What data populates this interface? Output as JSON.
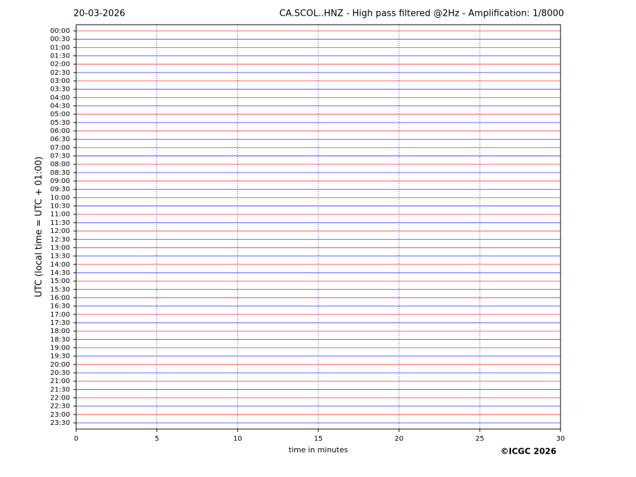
{
  "chart_data": {
    "type": "helicorder",
    "date": "20-03-2026",
    "title": "CA.SCOL..HNZ - High pass filtered @2Hz - Amplification: 1/8000",
    "y_label": "UTC (local time = UTC + 01:00)",
    "x_label": "time in minutes",
    "credit": "©ICGC 2026",
    "categories": [
      "00:00",
      "00:30",
      "01:00",
      "01:30",
      "02:00",
      "02:30",
      "03:00",
      "03:30",
      "04:00",
      "04:30",
      "05:00",
      "05:30",
      "06:00",
      "06:30",
      "07:00",
      "07:30",
      "08:00",
      "08:30",
      "09:00",
      "09:30",
      "10:00",
      "10:30",
      "11:00",
      "11:30",
      "12:00",
      "12:30",
      "13:00",
      "13:30",
      "14:00",
      "14:30",
      "15:00",
      "15:30",
      "16:00",
      "16:30",
      "17:00",
      "17:30",
      "18:00",
      "18:30",
      "19:00",
      "19:30",
      "20:00",
      "20:30",
      "21:00",
      "21:30",
      "22:00",
      "22:30",
      "23:00",
      "23:30"
    ],
    "xlim": [
      0,
      30
    ],
    "xticks": [
      0,
      5,
      10,
      15,
      20,
      25,
      30
    ],
    "grid": true,
    "colors": [
      "#ff0000",
      "#0000ff"
    ]
  }
}
